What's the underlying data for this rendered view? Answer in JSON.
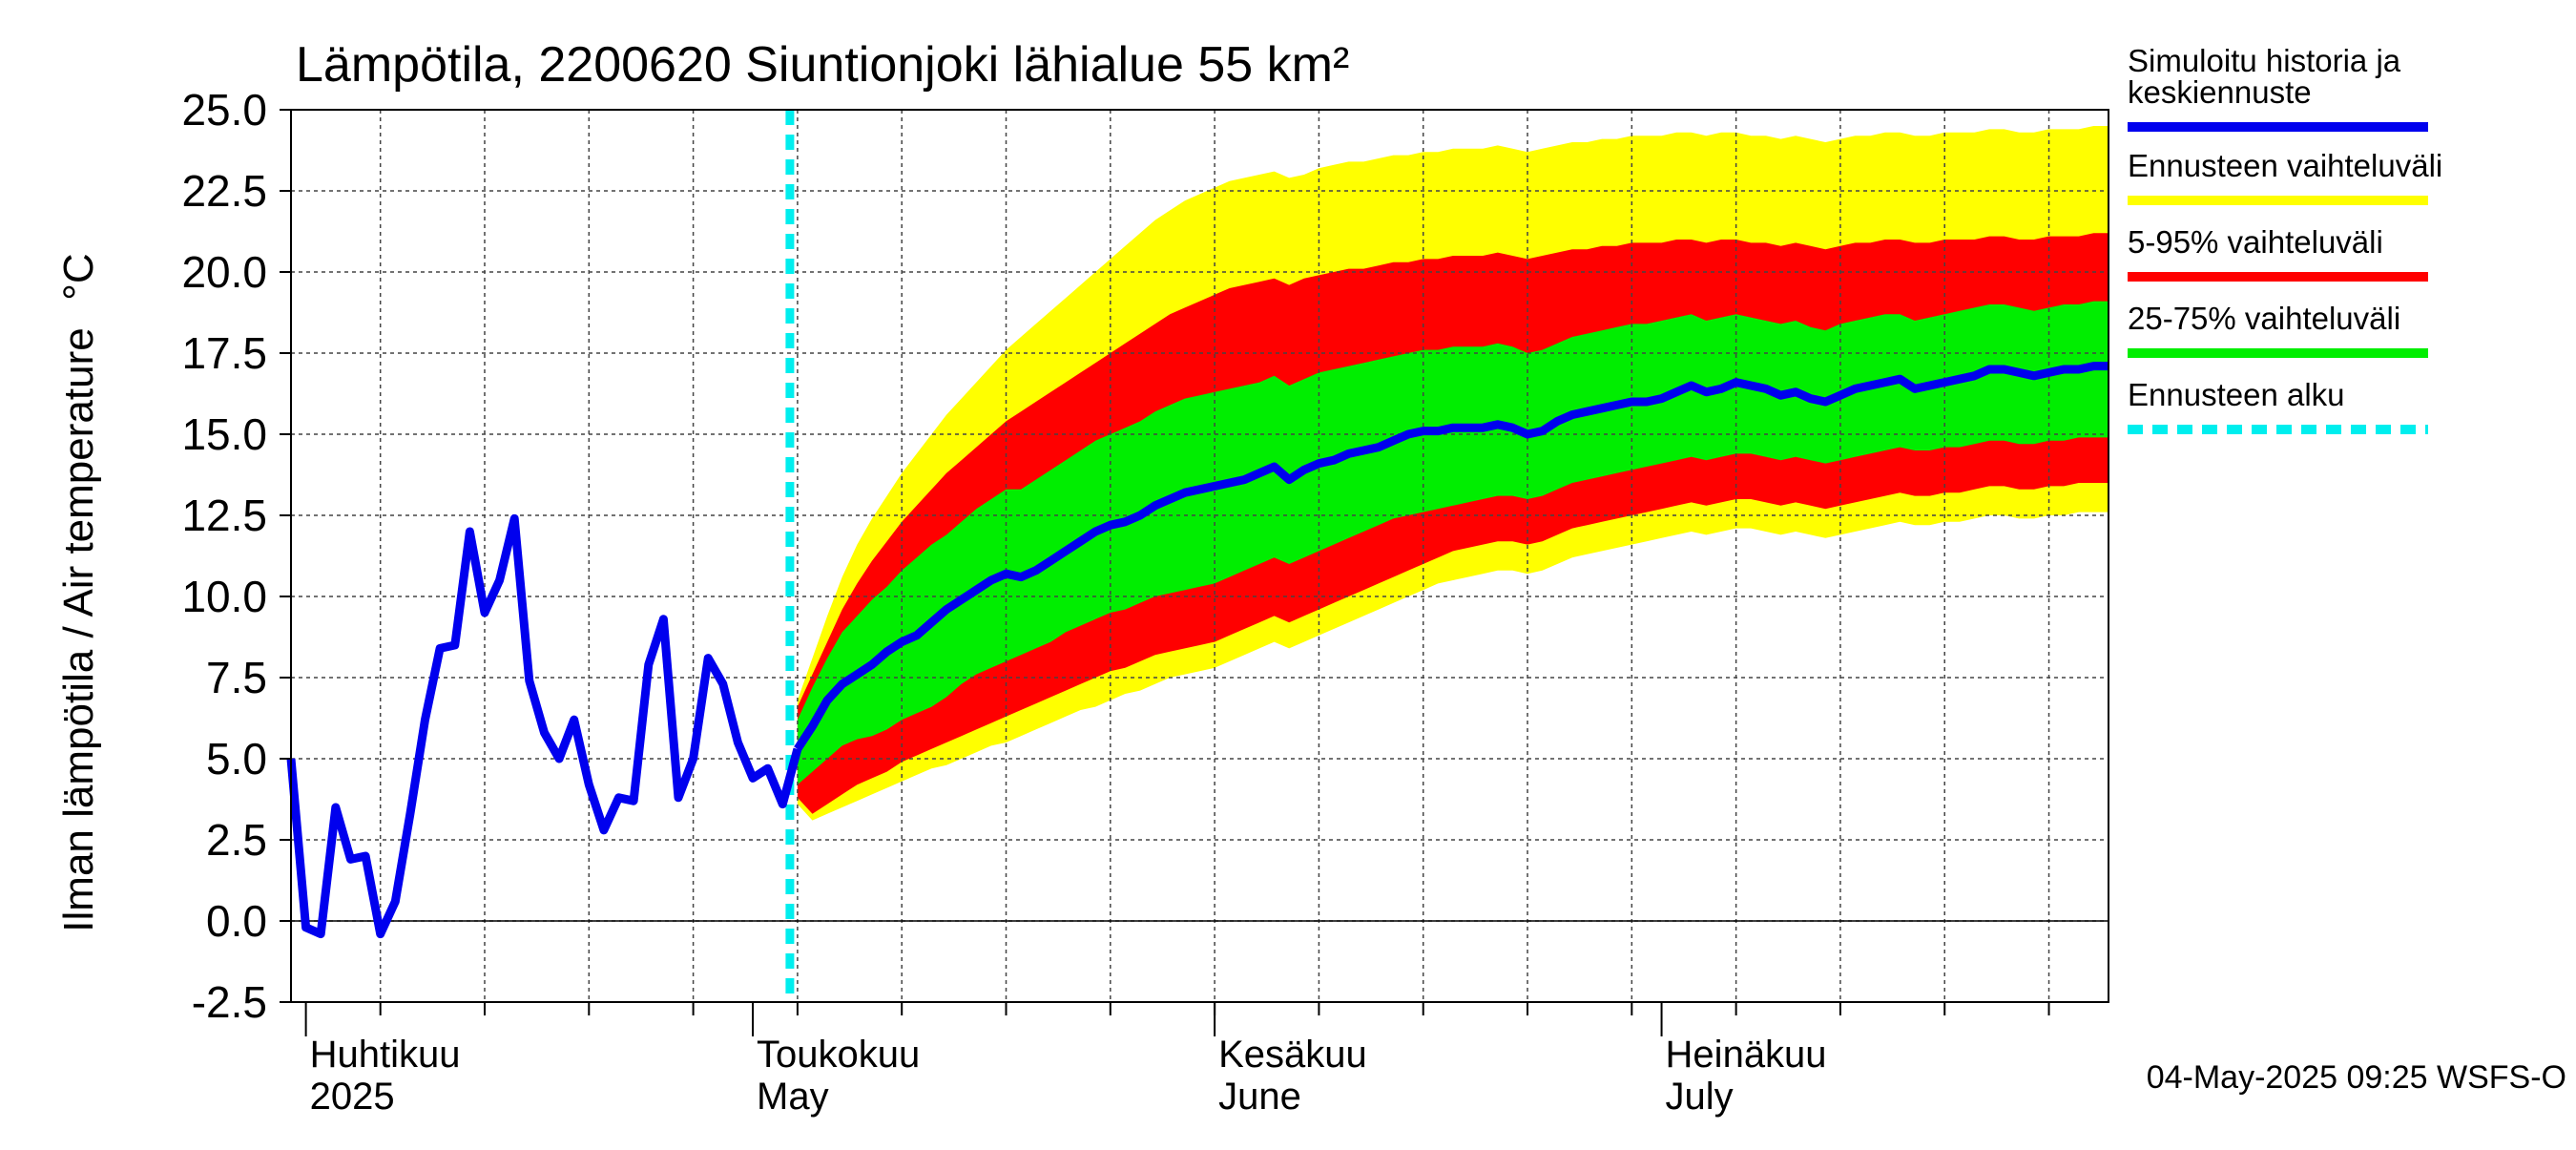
{
  "chart_data": {
    "type": "area",
    "title": "Lämpötila, 2200620 Siuntionjoki lähialue 55 km²",
    "ylabel": "Ilman lämpötila / Air temperature",
    "yunit": "°C",
    "ylim": [
      -2.5,
      25.0
    ],
    "yticks": [
      "25.0",
      "22.5",
      "20.0",
      "17.5",
      "15.0",
      "12.5",
      "10.0",
      "7.5",
      "5.0",
      "2.5",
      "0.0",
      "-2.5"
    ],
    "xlim": [
      "2025-03-31",
      "2025-07-31"
    ],
    "x_month_labels": [
      {
        "date": "2025-04-01",
        "fi": "Huhtikuu",
        "en": "2025"
      },
      {
        "date": "2025-05-01",
        "fi": "Toukokuu",
        "en": "May"
      },
      {
        "date": "2025-06-01",
        "fi": "Kesäkuu",
        "en": "June"
      },
      {
        "date": "2025-07-01",
        "fi": "Heinäkuu",
        "en": "July"
      }
    ],
    "grid": true,
    "legend_position": "right",
    "legend": [
      {
        "label": "Simuloitu historia ja keskiennuste",
        "color": "#0000ee",
        "style": "solid"
      },
      {
        "label": "Ennusteen vaihteluväli",
        "color": "#ffff00",
        "style": "solid"
      },
      {
        "label": "5-95% vaihteluväli",
        "color": "#ff0000",
        "style": "solid"
      },
      {
        "label": "25-75% vaihteluväli",
        "color": "#00ee00",
        "style": "solid"
      },
      {
        "label": "Ennusteen alku",
        "color": "#00eeee",
        "style": "dashed"
      }
    ],
    "forecast_start": "2025-05-04",
    "footer": "04-May-2025 09:25 WSFS-O",
    "history": {
      "x": [
        "2025-03-31",
        "2025-04-01",
        "2025-04-02",
        "2025-04-03",
        "2025-04-04",
        "2025-04-05",
        "2025-04-06",
        "2025-04-07",
        "2025-04-08",
        "2025-04-09",
        "2025-04-10",
        "2025-04-11",
        "2025-04-12",
        "2025-04-13",
        "2025-04-14",
        "2025-04-15",
        "2025-04-16",
        "2025-04-17",
        "2025-04-18",
        "2025-04-19",
        "2025-04-20",
        "2025-04-21",
        "2025-04-22",
        "2025-04-23",
        "2025-04-24",
        "2025-04-25",
        "2025-04-26",
        "2025-04-27",
        "2025-04-28",
        "2025-04-29",
        "2025-04-30",
        "2025-05-01",
        "2025-05-02",
        "2025-05-03",
        "2025-05-04"
      ],
      "y": [
        5.0,
        -0.2,
        -0.4,
        3.5,
        1.9,
        2.0,
        -0.4,
        0.6,
        3.3,
        6.2,
        8.4,
        8.5,
        12.0,
        9.5,
        10.5,
        12.4,
        7.4,
        5.8,
        5.0,
        6.2,
        4.2,
        2.8,
        3.8,
        3.7,
        7.9,
        9.3,
        3.8,
        5.0,
        8.1,
        7.3,
        5.5,
        4.4,
        4.7,
        3.6,
        5.3
      ]
    },
    "forecast": {
      "x": [
        "2025-05-04",
        "2025-05-05",
        "2025-05-06",
        "2025-05-07",
        "2025-05-08",
        "2025-05-09",
        "2025-05-10",
        "2025-05-11",
        "2025-05-12",
        "2025-05-13",
        "2025-05-14",
        "2025-05-15",
        "2025-05-16",
        "2025-05-17",
        "2025-05-18",
        "2025-05-19",
        "2025-05-20",
        "2025-05-21",
        "2025-05-22",
        "2025-05-23",
        "2025-05-24",
        "2025-05-25",
        "2025-05-26",
        "2025-05-27",
        "2025-05-28",
        "2025-05-29",
        "2025-05-30",
        "2025-05-31",
        "2025-06-01",
        "2025-06-02",
        "2025-06-03",
        "2025-06-04",
        "2025-06-05",
        "2025-06-06",
        "2025-06-07",
        "2025-06-08",
        "2025-06-09",
        "2025-06-10",
        "2025-06-11",
        "2025-06-12",
        "2025-06-13",
        "2025-06-14",
        "2025-06-15",
        "2025-06-16",
        "2025-06-17",
        "2025-06-18",
        "2025-06-19",
        "2025-06-20",
        "2025-06-21",
        "2025-06-22",
        "2025-06-23",
        "2025-06-24",
        "2025-06-25",
        "2025-06-26",
        "2025-06-27",
        "2025-06-28",
        "2025-06-29",
        "2025-06-30",
        "2025-07-01",
        "2025-07-02",
        "2025-07-03",
        "2025-07-04",
        "2025-07-05",
        "2025-07-06",
        "2025-07-07",
        "2025-07-08",
        "2025-07-09",
        "2025-07-10",
        "2025-07-11",
        "2025-07-12",
        "2025-07-13",
        "2025-07-14",
        "2025-07-15",
        "2025-07-16",
        "2025-07-17",
        "2025-07-18",
        "2025-07-19",
        "2025-07-20",
        "2025-07-21",
        "2025-07-22",
        "2025-07-23",
        "2025-07-24",
        "2025-07-25",
        "2025-07-26",
        "2025-07-27",
        "2025-07-28",
        "2025-07-29",
        "2025-07-30",
        "2025-07-31"
      ],
      "median": [
        5.3,
        6.0,
        6.8,
        7.3,
        7.6,
        7.9,
        8.3,
        8.6,
        8.8,
        9.2,
        9.6,
        9.9,
        10.2,
        10.5,
        10.7,
        10.6,
        10.8,
        11.1,
        11.4,
        11.7,
        12.0,
        12.2,
        12.3,
        12.5,
        12.8,
        13.0,
        13.2,
        13.3,
        13.4,
        13.5,
        13.6,
        13.8,
        14.0,
        13.6,
        13.9,
        14.1,
        14.2,
        14.4,
        14.5,
        14.6,
        14.8,
        15.0,
        15.1,
        15.1,
        15.2,
        15.2,
        15.2,
        15.3,
        15.2,
        15.0,
        15.1,
        15.4,
        15.6,
        15.7,
        15.8,
        15.9,
        16.0,
        16.0,
        16.1,
        16.3,
        16.5,
        16.3,
        16.4,
        16.6,
        16.5,
        16.4,
        16.2,
        16.3,
        16.1,
        16.0,
        16.2,
        16.4,
        16.5,
        16.6,
        16.7,
        16.4,
        16.5,
        16.6,
        16.7,
        16.8,
        17.0,
        17.0,
        16.9,
        16.8,
        16.9,
        17.0,
        17.0,
        17.1,
        17.1
      ],
      "p25": [
        4.2,
        4.6,
        5.0,
        5.4,
        5.6,
        5.7,
        5.9,
        6.2,
        6.4,
        6.6,
        6.9,
        7.3,
        7.6,
        7.8,
        8.0,
        8.2,
        8.4,
        8.6,
        8.9,
        9.1,
        9.3,
        9.5,
        9.6,
        9.8,
        10.0,
        10.1,
        10.2,
        10.3,
        10.4,
        10.6,
        10.8,
        11.0,
        11.2,
        11.0,
        11.2,
        11.4,
        11.6,
        11.8,
        12.0,
        12.2,
        12.4,
        12.5,
        12.6,
        12.7,
        12.8,
        12.9,
        13.0,
        13.1,
        13.1,
        13.0,
        13.1,
        13.3,
        13.5,
        13.6,
        13.7,
        13.8,
        13.9,
        14.0,
        14.1,
        14.2,
        14.3,
        14.2,
        14.3,
        14.4,
        14.4,
        14.3,
        14.2,
        14.3,
        14.2,
        14.1,
        14.2,
        14.3,
        14.4,
        14.5,
        14.6,
        14.5,
        14.5,
        14.6,
        14.6,
        14.7,
        14.8,
        14.8,
        14.7,
        14.7,
        14.8,
        14.8,
        14.9,
        14.9,
        14.9
      ],
      "p75": [
        6.2,
        7.2,
        8.1,
        8.9,
        9.4,
        9.9,
        10.3,
        10.8,
        11.2,
        11.6,
        11.9,
        12.3,
        12.7,
        13.0,
        13.3,
        13.3,
        13.6,
        13.9,
        14.2,
        14.5,
        14.8,
        15.0,
        15.2,
        15.4,
        15.7,
        15.9,
        16.1,
        16.2,
        16.3,
        16.4,
        16.5,
        16.6,
        16.8,
        16.5,
        16.7,
        16.9,
        17.0,
        17.1,
        17.2,
        17.3,
        17.4,
        17.5,
        17.6,
        17.6,
        17.7,
        17.7,
        17.7,
        17.8,
        17.7,
        17.5,
        17.6,
        17.8,
        18.0,
        18.1,
        18.2,
        18.3,
        18.4,
        18.4,
        18.5,
        18.6,
        18.7,
        18.5,
        18.6,
        18.7,
        18.6,
        18.5,
        18.4,
        18.5,
        18.3,
        18.2,
        18.4,
        18.5,
        18.6,
        18.7,
        18.7,
        18.5,
        18.6,
        18.7,
        18.8,
        18.9,
        19.0,
        19.0,
        18.9,
        18.8,
        18.9,
        19.0,
        19.0,
        19.1,
        19.1
      ],
      "p05": [
        3.8,
        3.3,
        3.6,
        3.9,
        4.2,
        4.4,
        4.6,
        4.9,
        5.1,
        5.3,
        5.5,
        5.7,
        5.9,
        6.1,
        6.3,
        6.5,
        6.7,
        6.9,
        7.1,
        7.3,
        7.5,
        7.7,
        7.8,
        8.0,
        8.2,
        8.3,
        8.4,
        8.5,
        8.6,
        8.8,
        9.0,
        9.2,
        9.4,
        9.2,
        9.4,
        9.6,
        9.8,
        10.0,
        10.2,
        10.4,
        10.6,
        10.8,
        11.0,
        11.2,
        11.4,
        11.5,
        11.6,
        11.7,
        11.7,
        11.6,
        11.7,
        11.9,
        12.1,
        12.2,
        12.3,
        12.4,
        12.5,
        12.6,
        12.7,
        12.8,
        12.9,
        12.8,
        12.9,
        13.0,
        13.0,
        12.9,
        12.8,
        12.9,
        12.8,
        12.7,
        12.8,
        12.9,
        13.0,
        13.1,
        13.2,
        13.1,
        13.1,
        13.2,
        13.2,
        13.3,
        13.4,
        13.4,
        13.3,
        13.3,
        13.4,
        13.4,
        13.5,
        13.5,
        13.5
      ],
      "p95": [
        6.6,
        7.6,
        8.6,
        9.6,
        10.4,
        11.1,
        11.7,
        12.3,
        12.8,
        13.3,
        13.8,
        14.2,
        14.6,
        15.0,
        15.4,
        15.7,
        16.0,
        16.3,
        16.6,
        16.9,
        17.2,
        17.5,
        17.8,
        18.1,
        18.4,
        18.7,
        18.9,
        19.1,
        19.3,
        19.5,
        19.6,
        19.7,
        19.8,
        19.6,
        19.8,
        19.9,
        20.0,
        20.1,
        20.1,
        20.2,
        20.3,
        20.3,
        20.4,
        20.4,
        20.5,
        20.5,
        20.5,
        20.6,
        20.5,
        20.4,
        20.5,
        20.6,
        20.7,
        20.7,
        20.8,
        20.8,
        20.9,
        20.9,
        20.9,
        21.0,
        21.0,
        20.9,
        21.0,
        21.0,
        20.9,
        20.9,
        20.8,
        20.9,
        20.8,
        20.7,
        20.8,
        20.9,
        20.9,
        21.0,
        21.0,
        20.9,
        20.9,
        21.0,
        21.0,
        21.0,
        21.1,
        21.1,
        21.0,
        21.0,
        21.1,
        21.1,
        21.1,
        21.2,
        21.2
      ],
      "min": [
        3.6,
        3.1,
        3.3,
        3.5,
        3.7,
        3.9,
        4.1,
        4.3,
        4.5,
        4.7,
        4.8,
        5.0,
        5.2,
        5.4,
        5.5,
        5.7,
        5.9,
        6.1,
        6.3,
        6.5,
        6.6,
        6.8,
        7.0,
        7.1,
        7.3,
        7.5,
        7.6,
        7.7,
        7.8,
        8.0,
        8.2,
        8.4,
        8.6,
        8.4,
        8.6,
        8.8,
        9.0,
        9.2,
        9.4,
        9.6,
        9.8,
        10.0,
        10.2,
        10.4,
        10.5,
        10.6,
        10.7,
        10.8,
        10.8,
        10.7,
        10.8,
        11.0,
        11.2,
        11.3,
        11.4,
        11.5,
        11.6,
        11.7,
        11.8,
        11.9,
        12.0,
        11.9,
        12.0,
        12.1,
        12.1,
        12.0,
        11.9,
        12.0,
        11.9,
        11.8,
        11.9,
        12.0,
        12.1,
        12.2,
        12.3,
        12.2,
        12.2,
        12.3,
        12.3,
        12.4,
        12.5,
        12.5,
        12.4,
        12.4,
        12.5,
        12.5,
        12.6,
        12.6,
        12.6
      ],
      "max": [
        6.8,
        8.1,
        9.4,
        10.6,
        11.6,
        12.4,
        13.1,
        13.8,
        14.4,
        15.0,
        15.6,
        16.1,
        16.6,
        17.1,
        17.6,
        18.0,
        18.4,
        18.8,
        19.2,
        19.6,
        20.0,
        20.4,
        20.8,
        21.2,
        21.6,
        21.9,
        22.2,
        22.4,
        22.6,
        22.8,
        22.9,
        23.0,
        23.1,
        22.9,
        23.0,
        23.2,
        23.3,
        23.4,
        23.4,
        23.5,
        23.6,
        23.6,
        23.7,
        23.7,
        23.8,
        23.8,
        23.8,
        23.9,
        23.8,
        23.7,
        23.8,
        23.9,
        24.0,
        24.0,
        24.1,
        24.1,
        24.2,
        24.2,
        24.2,
        24.3,
        24.3,
        24.2,
        24.3,
        24.3,
        24.2,
        24.2,
        24.1,
        24.2,
        24.1,
        24.0,
        24.1,
        24.2,
        24.2,
        24.3,
        24.3,
        24.2,
        24.2,
        24.3,
        24.3,
        24.3,
        24.4,
        24.4,
        24.3,
        24.3,
        24.4,
        24.4,
        24.4,
        24.5,
        24.5
      ]
    }
  }
}
